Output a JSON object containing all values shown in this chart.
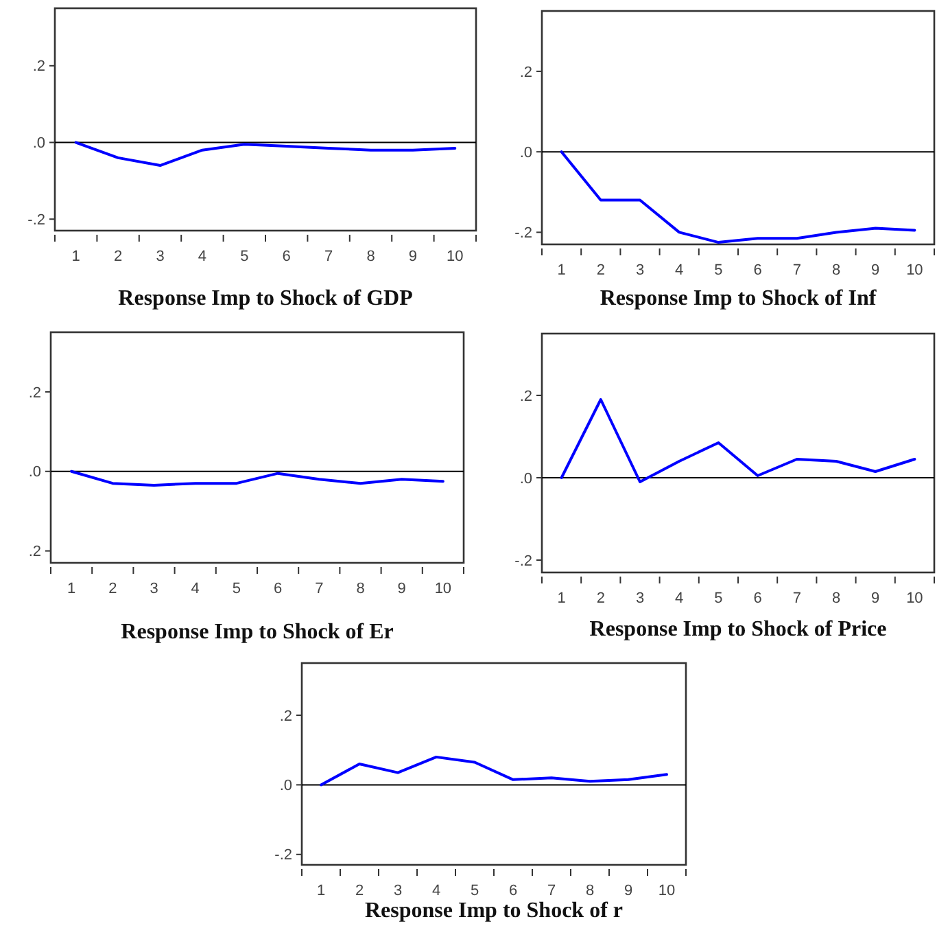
{
  "chart_data": [
    {
      "type": "line",
      "title": "Response Imp to Shock of GDP",
      "categories": [
        "1",
        "2",
        "3",
        "4",
        "5",
        "6",
        "7",
        "8",
        "9",
        "10"
      ],
      "series": [
        {
          "color": "#0000ff",
          "values": [
            0,
            -0.04,
            -0.06,
            -0.02,
            -0.005,
            -0.01,
            -0.015,
            -0.02,
            -0.02,
            -0.015
          ]
        }
      ],
      "ylim": [
        -0.23,
        0.35
      ],
      "yticks": [
        {
          "value": -0.2,
          "label": "-.2"
        },
        {
          "value": 0,
          "label": ".0"
        },
        {
          "value": 0.2,
          "label": ".2"
        }
      ],
      "ref_lines": [
        {
          "axis": "y",
          "value": 0,
          "color": "#000000"
        }
      ],
      "grid": false,
      "marker": "none",
      "line_style": "solid"
    },
    {
      "type": "line",
      "title": "Response Imp to Shock of Inf",
      "categories": [
        "1",
        "2",
        "3",
        "4",
        "5",
        "6",
        "7",
        "8",
        "9",
        "10"
      ],
      "series": [
        {
          "color": "#0000ff",
          "values": [
            0,
            -0.12,
            -0.12,
            -0.2,
            -0.225,
            -0.215,
            -0.215,
            -0.2,
            -0.19,
            -0.195
          ]
        }
      ],
      "ylim": [
        -0.23,
        0.35
      ],
      "yticks": [
        {
          "value": -0.2,
          "label": "-.2"
        },
        {
          "value": 0,
          "label": ".0"
        },
        {
          "value": 0.2,
          "label": ".2"
        }
      ],
      "ref_lines": [
        {
          "axis": "y",
          "value": 0,
          "color": "#000000"
        }
      ],
      "grid": false,
      "marker": "none",
      "line_style": "solid"
    },
    {
      "type": "line",
      "title": "Response Imp to Shock of Er",
      "categories": [
        "1",
        "2",
        "3",
        "4",
        "5",
        "6",
        "7",
        "8",
        "9",
        "10"
      ],
      "series": [
        {
          "color": "#0000ff",
          "values": [
            0,
            -0.03,
            -0.035,
            -0.03,
            -0.03,
            -0.005,
            -0.02,
            -0.03,
            -0.02,
            -0.025
          ]
        }
      ],
      "ylim": [
        -0.23,
        0.35
      ],
      "yticks": [
        {
          "value": -0.2,
          "label": ".2"
        },
        {
          "value": 0,
          "label": ".0"
        },
        {
          "value": 0.2,
          "label": ".2"
        }
      ],
      "ref_lines": [
        {
          "axis": "y",
          "value": 0,
          "color": "#000000"
        }
      ],
      "grid": false,
      "marker": "none",
      "line_style": "solid"
    },
    {
      "type": "line",
      "title": "Response Imp to Shock of Price",
      "categories": [
        "1",
        "2",
        "3",
        "4",
        "5",
        "6",
        "7",
        "8",
        "9",
        "10"
      ],
      "series": [
        {
          "color": "#0000ff",
          "values": [
            0,
            0.19,
            -0.01,
            0.04,
            0.085,
            0.005,
            0.045,
            0.04,
            0.015,
            0.045
          ]
        }
      ],
      "ylim": [
        -0.23,
        0.35
      ],
      "yticks": [
        {
          "value": -0.2,
          "label": "-.2"
        },
        {
          "value": 0,
          "label": ".0"
        },
        {
          "value": 0.2,
          "label": ".2"
        }
      ],
      "ref_lines": [
        {
          "axis": "y",
          "value": 0,
          "color": "#000000"
        }
      ],
      "grid": false,
      "marker": "none",
      "line_style": "solid"
    },
    {
      "type": "line",
      "title": "Response Imp to Shock of r",
      "categories": [
        "1",
        "2",
        "3",
        "4",
        "5",
        "6",
        "7",
        "8",
        "9",
        "10"
      ],
      "series": [
        {
          "color": "#0000ff",
          "values": [
            0,
            0.06,
            0.035,
            0.08,
            0.065,
            0.015,
            0.02,
            0.01,
            0.015,
            0.03
          ]
        }
      ],
      "ylim": [
        -0.23,
        0.35
      ],
      "yticks": [
        {
          "value": -0.2,
          "label": "-.2"
        },
        {
          "value": 0,
          "label": ".0"
        },
        {
          "value": 0.2,
          "label": ".2"
        }
      ],
      "ref_lines": [
        {
          "axis": "y",
          "value": 0,
          "color": "#000000"
        }
      ],
      "grid": false,
      "marker": "none",
      "line_style": "solid"
    }
  ]
}
